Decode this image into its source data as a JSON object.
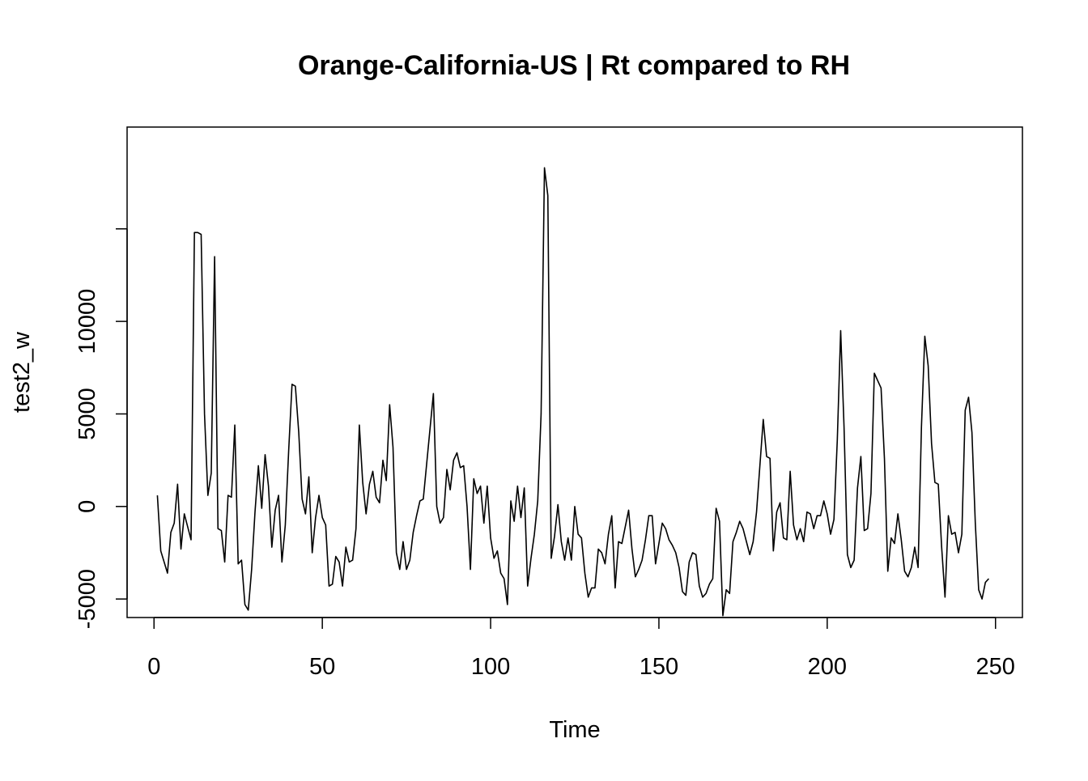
{
  "chart_data": {
    "type": "line",
    "title": "Orange-California-US | Rt compared to RH",
    "xlabel": "Time",
    "ylabel": "test2_w",
    "xlim": [
      -8,
      258
    ],
    "ylim": [
      -6000,
      20500
    ],
    "x_ticks": [
      0,
      50,
      100,
      150,
      200,
      250
    ],
    "y_ticks": [
      -5000,
      0,
      5000,
      10000,
      15000
    ],
    "y_tick_labels": [
      "-5000",
      "0",
      "5000",
      "10000",
      ""
    ],
    "grid": false,
    "legend": "none",
    "line_color": "#000000",
    "series": [
      {
        "x_start": 1,
        "values": [
          600,
          -2400,
          -3000,
          -3600,
          -1400,
          -900,
          1200,
          -2300,
          -400,
          -1100,
          -1800,
          14800,
          14800,
          14700,
          5000,
          600,
          1800,
          13500,
          -1200,
          -1300,
          -3000,
          600,
          500,
          4400,
          -3100,
          -2900,
          -5300,
          -5600,
          -3400,
          -300,
          2200,
          -100,
          2800,
          1100,
          -2200,
          -200,
          600,
          -3000,
          -1000,
          3000,
          6600,
          6500,
          4000,
          400,
          -400,
          1600,
          -2500,
          -600,
          600,
          -600,
          -1000,
          -4300,
          -4200,
          -2700,
          -3000,
          -4300,
          -2200,
          -3000,
          -2900,
          -1200,
          4400,
          1300,
          -400,
          1200,
          1900,
          500,
          200,
          2500,
          1400,
          5500,
          3200,
          -2500,
          -3400,
          -1900,
          -3400,
          -2900,
          -1400,
          -500,
          300,
          400,
          2300,
          4200,
          6100,
          0,
          -900,
          -600,
          2000,
          900,
          2500,
          2900,
          2100,
          2200,
          0,
          -3400,
          1500,
          700,
          1100,
          -900,
          1100,
          -1700,
          -2800,
          -2400,
          -3600,
          -3900,
          -5300,
          300,
          -800,
          1100,
          -600,
          1000,
          -4300,
          -2800,
          -1500,
          300,
          5000,
          18300,
          16800,
          -2800,
          -1600,
          100,
          -1900,
          -2900,
          -1700,
          -2900,
          0,
          -1500,
          -1700,
          -3600,
          -4900,
          -4400,
          -4400,
          -2300,
          -2500,
          -3100,
          -1500,
          -500,
          -4400,
          -1900,
          -2000,
          -1100,
          -200,
          -2300,
          -3800,
          -3400,
          -2900,
          -1800,
          -500,
          -500,
          -3100,
          -2000,
          -900,
          -1200,
          -1800,
          -2100,
          -2500,
          -3300,
          -4600,
          -4800,
          -3000,
          -2500,
          -2600,
          -4300,
          -4900,
          -4700,
          -4200,
          -3900,
          -100,
          -800,
          -5900,
          -4500,
          -4700,
          -1900,
          -1400,
          -800,
          -1200,
          -1900,
          -2600,
          -1900,
          -300,
          2200,
          4700,
          2700,
          2600,
          -2400,
          -300,
          200,
          -1700,
          -1800,
          1900,
          -1000,
          -1800,
          -1200,
          -1900,
          -300,
          -400,
          -1200,
          -500,
          -500,
          300,
          -400,
          -1500,
          -700,
          3600,
          9500,
          4300,
          -2600,
          -3300,
          -2900,
          1000,
          2700,
          -1300,
          -1200,
          700,
          7200,
          6800,
          6400,
          2600,
          -3500,
          -1700,
          -2000,
          -400,
          -1800,
          -3500,
          -3800,
          -3300,
          -2200,
          -3300,
          4300,
          9200,
          7600,
          3400,
          1300,
          1200,
          -2200,
          -4900,
          -500,
          -1500,
          -1400,
          -2500,
          -1500,
          5200,
          5900,
          4000,
          -900,
          -4500,
          -5000,
          -4100,
          -3900
        ]
      }
    ]
  }
}
